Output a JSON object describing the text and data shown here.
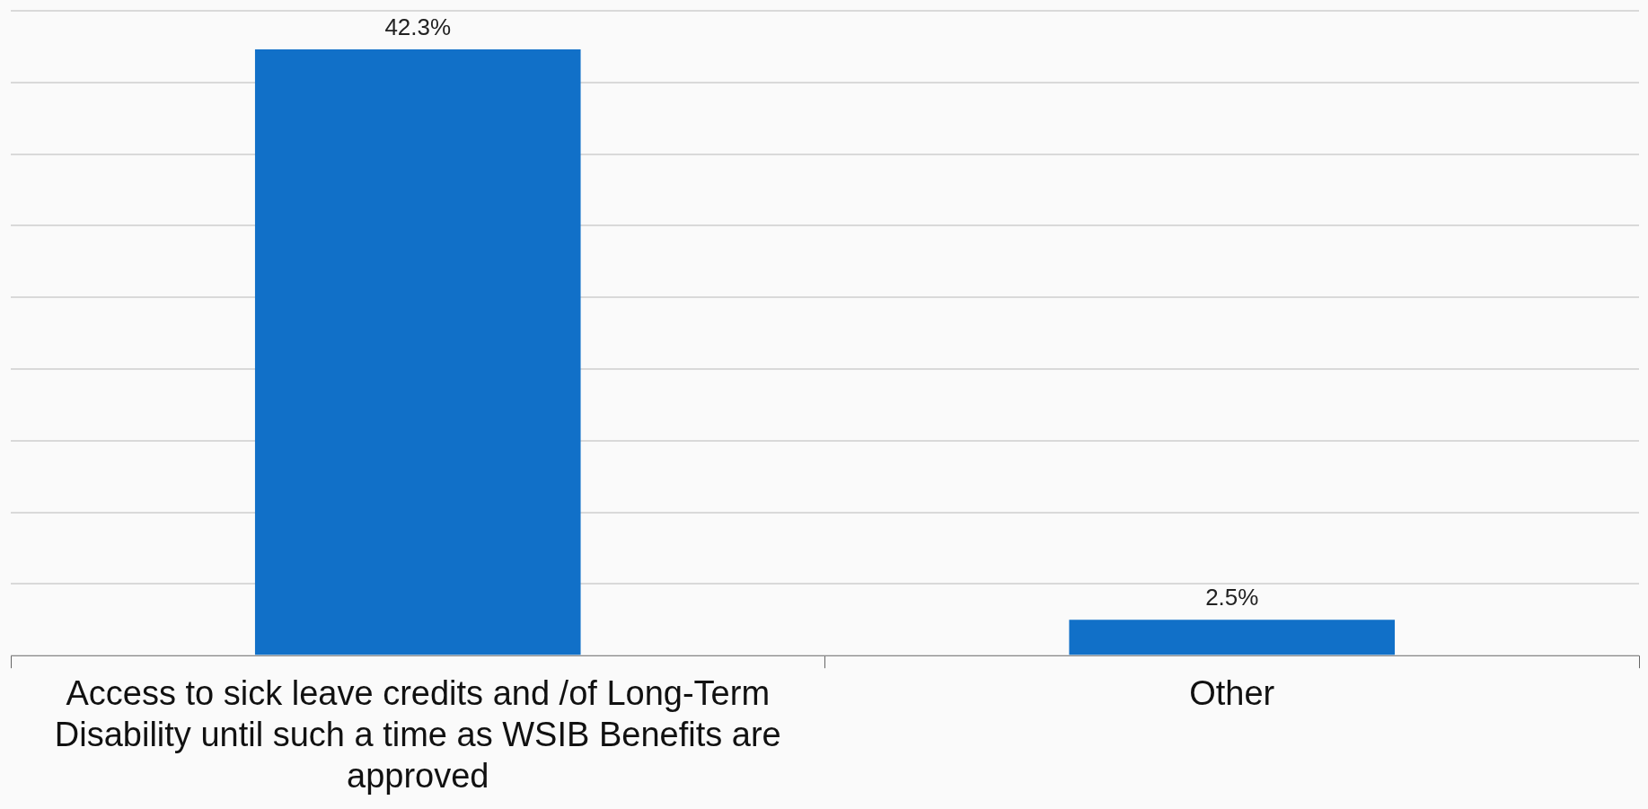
{
  "chart_data": {
    "type": "bar",
    "categories": [
      "Access to sick leave credits and /of Long-Term Disability until such a time as WSIB Benefits are approved",
      "Other"
    ],
    "values": [
      42.3,
      2.5
    ],
    "value_labels": [
      "42.3%",
      "2.5%"
    ],
    "color": "#1170c8",
    "ylim": [
      0,
      45
    ],
    "yticks": [
      {
        "value": 0,
        "label": null
      },
      {
        "value": 5,
        "label": null
      },
      {
        "value": 10,
        "label": null
      },
      {
        "value": 15,
        "label": null
      },
      {
        "value": 20,
        "label": null
      },
      {
        "value": 25,
        "label": null
      },
      {
        "value": 30,
        "label": null
      },
      {
        "value": 35,
        "label": null
      },
      {
        "value": 40,
        "label": null
      },
      {
        "value": 45,
        "label": null
      }
    ],
    "grid": "y",
    "tick_labels": "x",
    "legend": false
  }
}
